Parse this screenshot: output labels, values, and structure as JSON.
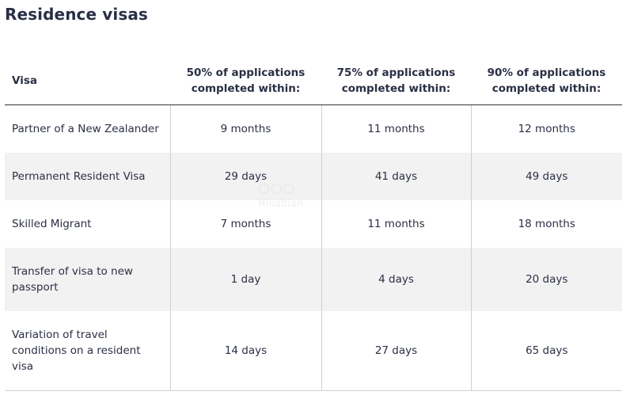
{
  "title": "Residence visas",
  "table": {
    "headers": [
      "Visa",
      "50% of applications completed within:",
      "75% of applications completed within:",
      "90% of applications completed within:"
    ],
    "rows": [
      [
        "Partner of a New Zealander",
        "9 months",
        "11 months",
        "12 months"
      ],
      [
        "Permanent Resident Visa",
        "29 days",
        "41 days",
        "49 days"
      ],
      [
        "Skilled Migrant",
        "7 months",
        "11 months",
        "18 months"
      ],
      [
        "Transfer of visa to new passport",
        "1 day",
        "4 days",
        "20 days"
      ],
      [
        "Variation of travel conditions on a resident visa",
        "14 days",
        "27 days",
        "65 days"
      ]
    ]
  },
  "watermark": "Hinabian",
  "colors": {
    "text": "#2a2f45",
    "stripe": "#f2f2f2",
    "divider": "#cfcfcf",
    "header_rule": "#333333"
  }
}
